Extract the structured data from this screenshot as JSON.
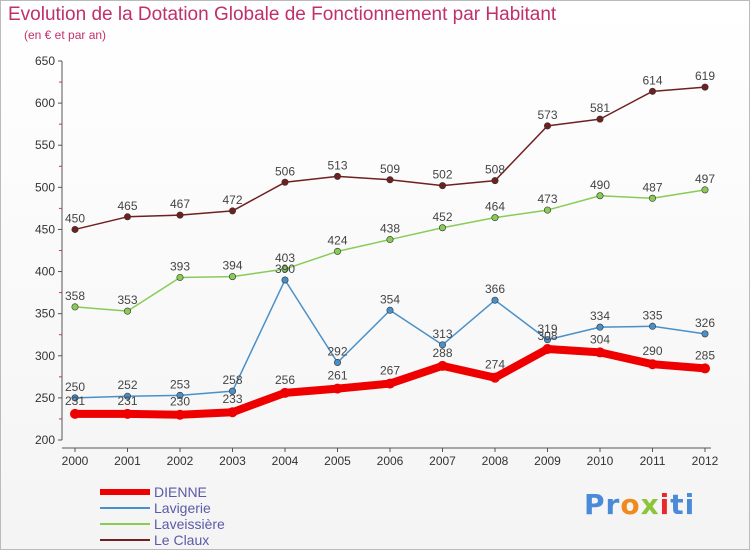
{
  "chart_data": {
    "type": "line",
    "title": "Evolution de la Dotation Globale de Fonctionnement par Habitant",
    "subtitle": "(en € et par an)",
    "x": [
      "2000",
      "2001",
      "2002",
      "2003",
      "2004",
      "2005",
      "2006",
      "2007",
      "2008",
      "2009",
      "2010",
      "2011",
      "2012"
    ],
    "ylim": [
      200,
      650
    ],
    "yticks": [
      200,
      250,
      300,
      350,
      400,
      450,
      500,
      550,
      600,
      650
    ],
    "grid": false,
    "series": [
      {
        "name": "DIENNE",
        "color": "#ee0000",
        "values": [
          231,
          231,
          230,
          233,
          256,
          261,
          267,
          288,
          274,
          308,
          304,
          290,
          285
        ]
      },
      {
        "name": "Lavigerie",
        "color": "#4a90c8",
        "values": [
          250,
          252,
          253,
          258,
          390,
          292,
          354,
          313,
          366,
          319,
          334,
          335,
          326
        ]
      },
      {
        "name": "Laveissière",
        "color": "#88cc55",
        "values": [
          358,
          353,
          393,
          394,
          403,
          424,
          438,
          452,
          464,
          473,
          490,
          487,
          497
        ]
      },
      {
        "name": "Le Claux",
        "color": "#702020",
        "values": [
          450,
          465,
          467,
          472,
          506,
          513,
          509,
          502,
          508,
          573,
          581,
          614,
          619
        ]
      }
    ]
  },
  "brand": {
    "p1": "Pr",
    "p2": "o",
    "p3": "x",
    "p4": "i",
    "p5": "ti"
  }
}
